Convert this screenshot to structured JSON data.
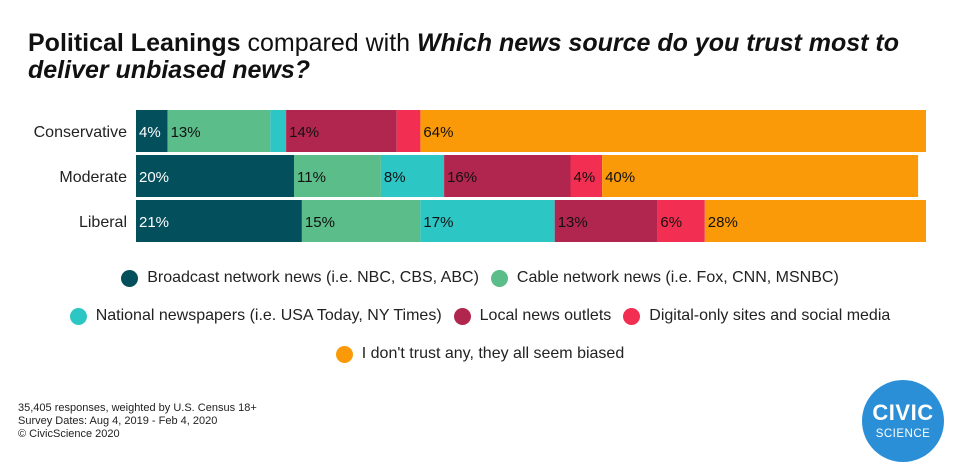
{
  "title": {
    "part1": "Political Leanings",
    "part2": " compared with ",
    "part3": "Which news source do you trust most to deliver unbiased news?"
  },
  "chart_data": {
    "type": "bar",
    "orientation": "horizontal",
    "stacked": true,
    "categories": [
      "Conservative",
      "Moderate",
      "Liberal"
    ],
    "series": [
      {
        "name": "Broadcast network news (i.e. NBC, CBS, ABC)",
        "color": "#034f5b",
        "values": [
          4,
          20,
          21
        ],
        "labels": [
          "4%",
          "20%",
          "21%"
        ]
      },
      {
        "name": "Cable network news (i.e. Fox, CNN, MSNBC)",
        "color": "#5bbd89",
        "values": [
          13,
          11,
          15
        ],
        "labels": [
          "13%",
          "11%",
          "15%"
        ]
      },
      {
        "name": "National newspapers (i.e. USA Today, NY Times)",
        "color": "#2cc6c4",
        "values": [
          2,
          8,
          17
        ],
        "labels": [
          "",
          "8%",
          "17%"
        ]
      },
      {
        "name": "Local news outlets",
        "color": "#b0264f",
        "values": [
          14,
          16,
          13
        ],
        "labels": [
          "14%",
          "16%",
          "13%"
        ]
      },
      {
        "name": "Digital-only sites and social media",
        "color": "#f22e52",
        "values": [
          3,
          4,
          6
        ],
        "labels": [
          "",
          "4%",
          "6%"
        ]
      },
      {
        "name": "I don't trust any, they all seem biased",
        "color": "#fb9a08",
        "values": [
          64,
          40,
          28
        ],
        "labels": [
          "64%",
          "40%",
          "28%"
        ]
      }
    ],
    "grid": false,
    "legend_position": "bottom"
  },
  "legend": [
    [
      "Broadcast network news (i.e. NBC, CBS, ABC)",
      "Cable network news (i.e. Fox, CNN, MSNBC)"
    ],
    [
      "National newspapers (i.e. USA Today, NY Times)",
      "Local news outlets",
      "Digital-only sites and social media"
    ],
    [
      "I don't trust any, they all seem biased"
    ]
  ],
  "footnote": {
    "line1": "35,405 responses, weighted by U.S. Census 18+",
    "line2": "Survey Dates: Aug 4, 2019 - Feb 4, 2020",
    "line3": "© CivicScience 2020"
  },
  "logo": {
    "line1": "CIVIC",
    "line2": "SCIENCE",
    "color": "#2a8fd6"
  }
}
